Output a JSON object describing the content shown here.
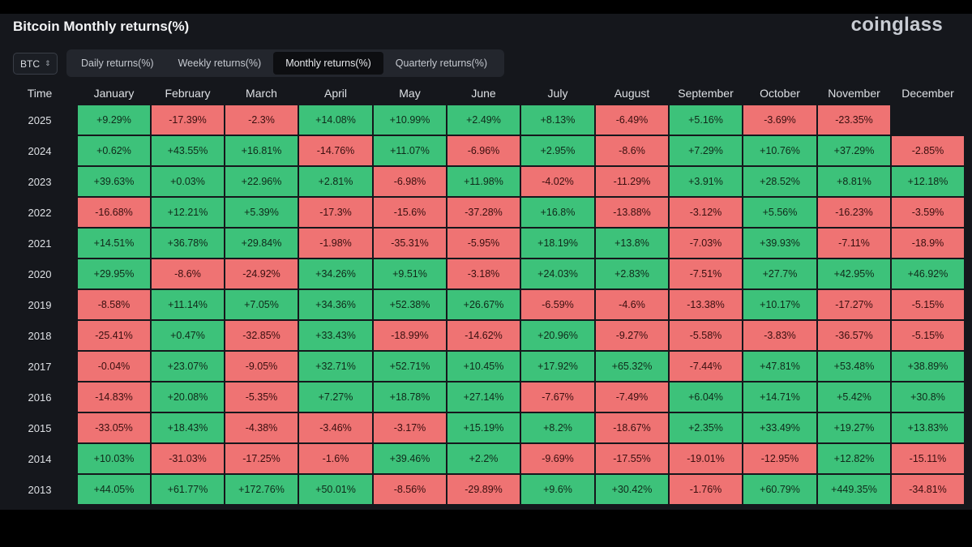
{
  "header": {
    "title": "Bitcoin Monthly returns(%)",
    "brand": "coinglass"
  },
  "asset_select": {
    "value": "BTC",
    "icon": "chevron-updown-icon"
  },
  "tabs": [
    {
      "label": "Daily returns(%)",
      "active": false
    },
    {
      "label": "Weekly returns(%)",
      "active": false
    },
    {
      "label": "Monthly returns(%)",
      "active": true
    },
    {
      "label": "Quarterly returns(%)",
      "active": false
    }
  ],
  "colors": {
    "positive": "#3dc27a",
    "negative": "#ef7373",
    "background": "#15171c"
  },
  "table": {
    "headers": [
      "Time",
      "January",
      "February",
      "March",
      "April",
      "May",
      "June",
      "July",
      "August",
      "September",
      "October",
      "November",
      "December"
    ],
    "rows": [
      {
        "year": "2025",
        "values": [
          "+9.29%",
          "-17.39%",
          "-2.3%",
          "+14.08%",
          "+10.99%",
          "+2.49%",
          "+8.13%",
          "-6.49%",
          "+5.16%",
          "-3.69%",
          "-23.35%",
          ""
        ]
      },
      {
        "year": "2024",
        "values": [
          "+0.62%",
          "+43.55%",
          "+16.81%",
          "-14.76%",
          "+11.07%",
          "-6.96%",
          "+2.95%",
          "-8.6%",
          "+7.29%",
          "+10.76%",
          "+37.29%",
          "-2.85%"
        ]
      },
      {
        "year": "2023",
        "values": [
          "+39.63%",
          "+0.03%",
          "+22.96%",
          "+2.81%",
          "-6.98%",
          "+11.98%",
          "-4.02%",
          "-11.29%",
          "+3.91%",
          "+28.52%",
          "+8.81%",
          "+12.18%"
        ]
      },
      {
        "year": "2022",
        "values": [
          "-16.68%",
          "+12.21%",
          "+5.39%",
          "-17.3%",
          "-15.6%",
          "-37.28%",
          "+16.8%",
          "-13.88%",
          "-3.12%",
          "+5.56%",
          "-16.23%",
          "-3.59%"
        ]
      },
      {
        "year": "2021",
        "values": [
          "+14.51%",
          "+36.78%",
          "+29.84%",
          "-1.98%",
          "-35.31%",
          "-5.95%",
          "+18.19%",
          "+13.8%",
          "-7.03%",
          "+39.93%",
          "-7.11%",
          "-18.9%"
        ]
      },
      {
        "year": "2020",
        "values": [
          "+29.95%",
          "-8.6%",
          "-24.92%",
          "+34.26%",
          "+9.51%",
          "-3.18%",
          "+24.03%",
          "+2.83%",
          "-7.51%",
          "+27.7%",
          "+42.95%",
          "+46.92%"
        ]
      },
      {
        "year": "2019",
        "values": [
          "-8.58%",
          "+11.14%",
          "+7.05%",
          "+34.36%",
          "+52.38%",
          "+26.67%",
          "-6.59%",
          "-4.6%",
          "-13.38%",
          "+10.17%",
          "-17.27%",
          "-5.15%"
        ]
      },
      {
        "year": "2018",
        "values": [
          "-25.41%",
          "+0.47%",
          "-32.85%",
          "+33.43%",
          "-18.99%",
          "-14.62%",
          "+20.96%",
          "-9.27%",
          "-5.58%",
          "-3.83%",
          "-36.57%",
          "-5.15%"
        ]
      },
      {
        "year": "2017",
        "values": [
          "-0.04%",
          "+23.07%",
          "-9.05%",
          "+32.71%",
          "+52.71%",
          "+10.45%",
          "+17.92%",
          "+65.32%",
          "-7.44%",
          "+47.81%",
          "+53.48%",
          "+38.89%"
        ]
      },
      {
        "year": "2016",
        "values": [
          "-14.83%",
          "+20.08%",
          "-5.35%",
          "+7.27%",
          "+18.78%",
          "+27.14%",
          "-7.67%",
          "-7.49%",
          "+6.04%",
          "+14.71%",
          "+5.42%",
          "+30.8%"
        ]
      },
      {
        "year": "2015",
        "values": [
          "-33.05%",
          "+18.43%",
          "-4.38%",
          "-3.46%",
          "-3.17%",
          "+15.19%",
          "+8.2%",
          "-18.67%",
          "+2.35%",
          "+33.49%",
          "+19.27%",
          "+13.83%"
        ]
      },
      {
        "year": "2014",
        "values": [
          "+10.03%",
          "-31.03%",
          "-17.25%",
          "-1.6%",
          "+39.46%",
          "+2.2%",
          "-9.69%",
          "-17.55%",
          "-19.01%",
          "-12.95%",
          "+12.82%",
          "-15.11%"
        ]
      },
      {
        "year": "2013",
        "values": [
          "+44.05%",
          "+61.77%",
          "+172.76%",
          "+50.01%",
          "-8.56%",
          "-29.89%",
          "+9.6%",
          "+30.42%",
          "-1.76%",
          "+60.79%",
          "+449.35%",
          "-34.81%"
        ]
      }
    ]
  }
}
